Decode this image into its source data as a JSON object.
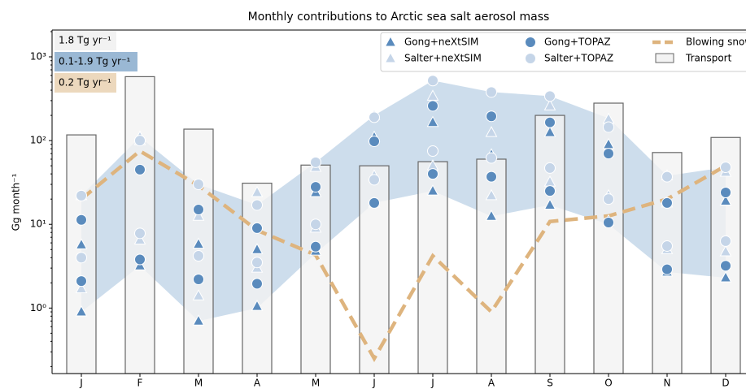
{
  "chart_data": {
    "type": "combo",
    "title": "Monthly contributions to Arctic sea salt aerosol mass",
    "ylabel": "Gg month⁻¹",
    "categories": [
      "J",
      "F",
      "M",
      "A",
      "M",
      "J",
      "J",
      "A",
      "S",
      "O",
      "N",
      "D"
    ],
    "log_y": true,
    "ylim": [
      0.165,
      2090
    ],
    "yticks": [
      {
        "value": 1,
        "label": "10⁰"
      },
      {
        "value": 10,
        "label": "10¹"
      },
      {
        "value": 100,
        "label": "10²"
      },
      {
        "value": 1000,
        "label": "10³"
      }
    ],
    "legend": "upper right",
    "bars": {
      "name": "Transport",
      "color": "#f3f3f3",
      "values": [
        117,
        580,
        137,
        31,
        51,
        50,
        56,
        60,
        200,
        280,
        72,
        109
      ]
    },
    "band": {
      "color": "#c4d7e9",
      "lower": [
        0.9,
        3.2,
        0.7,
        1.0,
        4.5,
        18,
        25,
        12.5,
        17,
        10,
        2.7,
        2.3
      ],
      "upper": [
        22,
        110,
        30,
        17,
        55,
        200,
        520,
        380,
        340,
        185,
        38,
        48
      ]
    },
    "line": {
      "name": "Blowing snow",
      "color": "#deb47e",
      "values": [
        20,
        75,
        29,
        8.5,
        4.3,
        0.25,
        4.2,
        0.9,
        10.8,
        12.6,
        20,
        50
      ]
    },
    "series": [
      {
        "name": "Gong+neXtSIM",
        "marker": "triangle",
        "color": "#5a8bbd",
        "values": [
          [
            0.9,
            5.7
          ],
          [
            3.2,
            100
          ],
          [
            0.7,
            5.8
          ],
          [
            1.05,
            5.0
          ],
          [
            4.8,
            24
          ],
          [
            18,
            110
          ],
          [
            25,
            165
          ],
          [
            12.5,
            68
          ],
          [
            17,
            125
          ],
          [
            11,
            90
          ],
          [
            2.7,
            18
          ],
          [
            2.3,
            19
          ]
        ]
      },
      {
        "name": "Salter+neXtSIM",
        "marker": "triangle",
        "color": "#c5d5e8",
        "values": [
          [
            1.7,
            22
          ],
          [
            6.5,
            110
          ],
          [
            1.4,
            12.5
          ],
          [
            3.0,
            24
          ],
          [
            9,
            48
          ],
          [
            38,
            200
          ],
          [
            50,
            340
          ],
          [
            22,
            125
          ],
          [
            32,
            260
          ],
          [
            22,
            180
          ],
          [
            5,
            38
          ],
          [
            4.7,
            42
          ]
        ]
      },
      {
        "name": "Gong+TOPAZ",
        "marker": "circle",
        "color": "#5a8bbd",
        "values": [
          [
            2.1,
            11.3
          ],
          [
            3.8,
            45
          ],
          [
            2.2,
            15
          ],
          [
            1.95,
            9.0
          ],
          [
            5.4,
            28
          ],
          [
            18,
            98
          ],
          [
            40,
            260
          ],
          [
            37,
            195
          ],
          [
            25,
            165
          ],
          [
            10.5,
            70
          ],
          [
            2.9,
            18
          ],
          [
            3.2,
            24
          ]
        ]
      },
      {
        "name": "Salter+TOPAZ",
        "marker": "circle",
        "color": "#c5d5e8",
        "values": [
          [
            4.0,
            22
          ],
          [
            7.8,
            100
          ],
          [
            4.2,
            30
          ],
          [
            3.5,
            17
          ],
          [
            10,
            55
          ],
          [
            34,
            190
          ],
          [
            75,
            520
          ],
          [
            62,
            380
          ],
          [
            47,
            340
          ],
          [
            20,
            145
          ],
          [
            5.5,
            37
          ],
          [
            6.3,
            48
          ]
        ]
      }
    ],
    "annotations": [
      {
        "text": "1.8 Tg yr⁻¹",
        "color": "#f2f2f2"
      },
      {
        "text": "0.1-1.9 Tg yr⁻¹",
        "color": "#9ab8d4"
      },
      {
        "text": "0.2 Tg yr⁻¹",
        "color": "#ecd8bd"
      }
    ]
  }
}
